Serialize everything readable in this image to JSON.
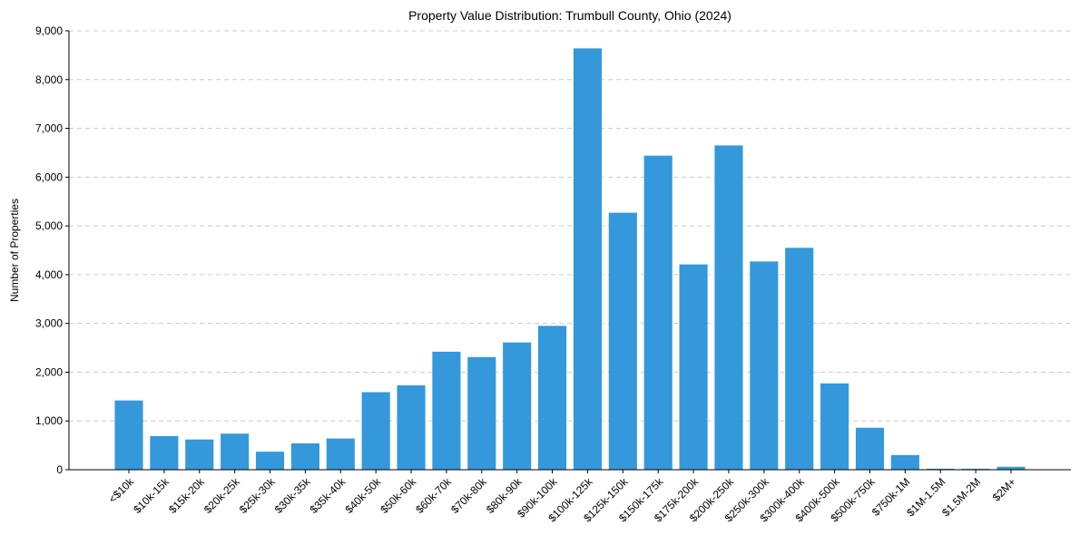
{
  "chart_data": {
    "type": "bar",
    "title": "Property Value Distribution: Trumbull County, Ohio (2024)",
    "xlabel": "",
    "ylabel": "Number of Properties",
    "ylim": [
      0,
      9000
    ],
    "yticks": [
      0,
      1000,
      2000,
      3000,
      4000,
      5000,
      6000,
      7000,
      8000,
      9000
    ],
    "ytick_labels": [
      "0",
      "1,000",
      "2,000",
      "3,000",
      "4,000",
      "5,000",
      "6,000",
      "7,000",
      "8,000",
      "9,000"
    ],
    "grid": "horizontal dashed",
    "bar_color": "#3498db",
    "categories": [
      "<$10k",
      "$10k-15k",
      "$15k-20k",
      "$20k-25k",
      "$25k-30k",
      "$30k-35k",
      "$35k-40k",
      "$40k-50k",
      "$50k-60k",
      "$60k-70k",
      "$70k-80k",
      "$80k-90k",
      "$90k-100k",
      "$100k-125k",
      "$125k-150k",
      "$150k-175k",
      "$175k-200k",
      "$200k-250k",
      "$250k-300k",
      "$300k-400k",
      "$400k-500k",
      "$500k-750k",
      "$750k-1M",
      "$1M-1.5M",
      "$1.5M-2M",
      "$2M+"
    ],
    "values": [
      1420,
      690,
      620,
      740,
      370,
      540,
      640,
      1590,
      1730,
      2420,
      2310,
      2610,
      2950,
      8640,
      5270,
      6440,
      4210,
      6650,
      4270,
      4550,
      1770,
      860,
      300,
      20,
      20,
      60
    ]
  }
}
